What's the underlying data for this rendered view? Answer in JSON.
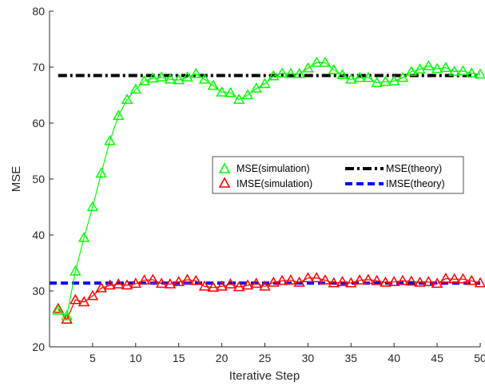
{
  "chart_data": {
    "type": "line",
    "xlabel": "Iterative Step",
    "ylabel": "MSE",
    "xlim": [
      0,
      50
    ],
    "ylim": [
      20,
      80
    ],
    "xticks": [
      5,
      10,
      15,
      20,
      25,
      30,
      35,
      40,
      45,
      50
    ],
    "yticks": [
      20,
      30,
      40,
      50,
      60,
      70,
      80
    ],
    "grid": false,
    "legend_placement": "center-right",
    "series": [
      {
        "name": "MSE(simulation)",
        "color": "#00ff00",
        "marker": "triangle",
        "line": "solid",
        "x": [
          1,
          2,
          3,
          4,
          5,
          6,
          7,
          8,
          9,
          10,
          11,
          12,
          13,
          14,
          15,
          16,
          17,
          18,
          19,
          20,
          21,
          22,
          23,
          24,
          25,
          26,
          27,
          28,
          29,
          30,
          31,
          32,
          33,
          34,
          35,
          36,
          37,
          38,
          39,
          40,
          41,
          42,
          43,
          44,
          45,
          46,
          47,
          48,
          49,
          50
        ],
        "values": [
          26.5,
          25.5,
          33.5,
          39.5,
          45,
          51,
          56.8,
          61.3,
          64.2,
          66,
          67.5,
          68,
          68.2,
          67.8,
          67.7,
          68.2,
          68.8,
          67.8,
          66.7,
          65.5,
          65.4,
          64.2,
          65,
          66.2,
          67,
          68.4,
          68.9,
          68.8,
          68.8,
          69.8,
          70.8,
          70.8,
          69.5,
          68.6,
          67.8,
          68.1,
          68.1,
          67.2,
          67.4,
          67.5,
          68.1,
          69.2,
          69.6,
          70.2,
          69.7,
          69.9,
          69.2,
          69.3,
          68.9,
          68.7
        ]
      },
      {
        "name": "IMSE(simulation)",
        "color": "#ff0000",
        "marker": "triangle",
        "line": "solid",
        "x": [
          1,
          2,
          3,
          4,
          5,
          6,
          7,
          8,
          9,
          10,
          11,
          12,
          13,
          14,
          15,
          16,
          17,
          18,
          19,
          20,
          21,
          22,
          23,
          24,
          25,
          26,
          27,
          28,
          29,
          30,
          31,
          32,
          33,
          34,
          35,
          36,
          37,
          38,
          39,
          40,
          41,
          42,
          43,
          44,
          45,
          46,
          47,
          48,
          49,
          50
        ],
        "values": [
          26.8,
          24.9,
          28.4,
          28,
          29.1,
          30.5,
          31,
          31.2,
          31,
          31.3,
          31.9,
          32,
          31.3,
          31.2,
          31.6,
          32,
          31.8,
          30.8,
          30.6,
          30.8,
          31.2,
          30.7,
          31,
          31.3,
          30.8,
          31.5,
          31.8,
          31.9,
          31.5,
          32.3,
          32.3,
          31.9,
          31.4,
          31.6,
          31.4,
          31.9,
          32,
          31.8,
          31.5,
          31.6,
          31.8,
          31.7,
          31.5,
          31.6,
          31.3,
          32.2,
          32.1,
          32.1,
          31.8,
          31.4
        ]
      },
      {
        "name": "MSE(theory)",
        "color": "#000000",
        "line": "dash-dot",
        "x": [
          1,
          50
        ],
        "values": [
          68.5,
          68.5
        ]
      },
      {
        "name": "IMSE(theory)",
        "color": "#0000ff",
        "line": "dashed",
        "x": [
          0,
          50
        ],
        "values": [
          31.4,
          31.4
        ]
      }
    ]
  }
}
